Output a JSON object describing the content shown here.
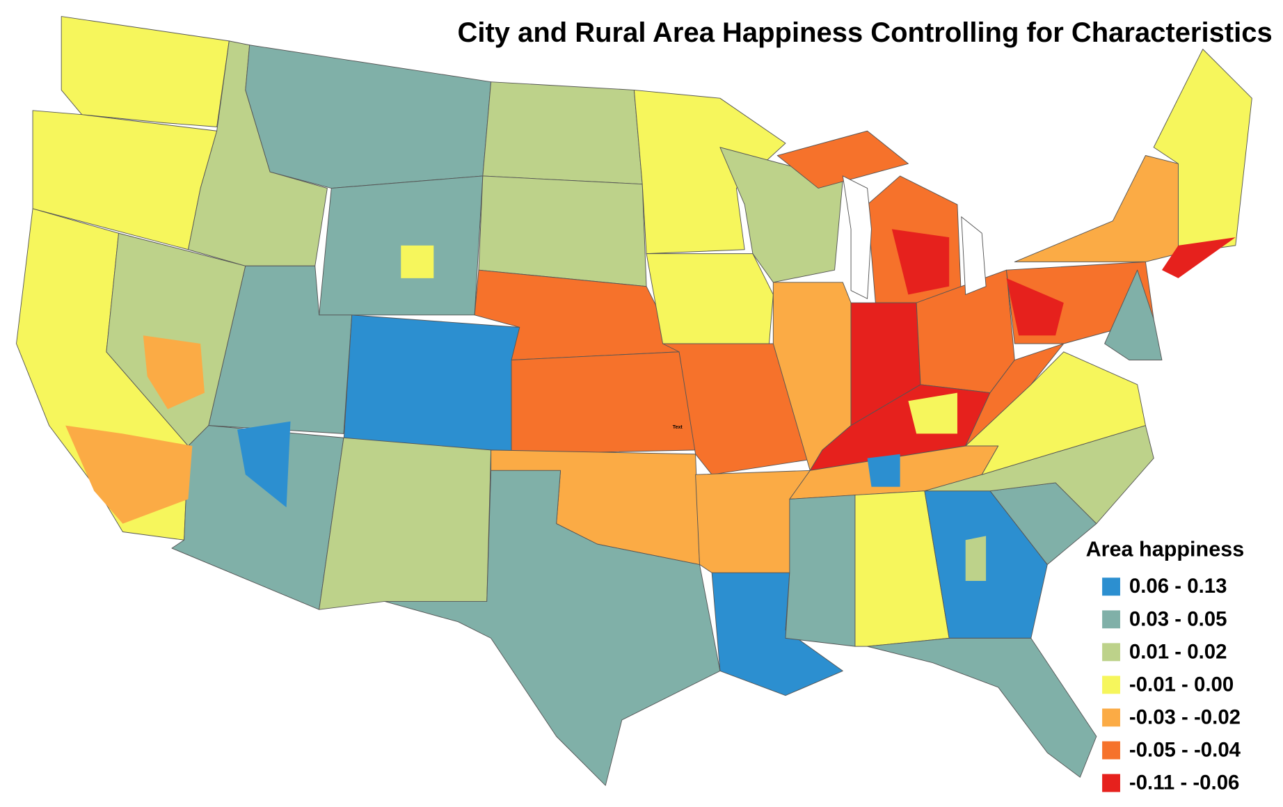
{
  "map": {
    "title": "City and Rural Area Happiness Controlling for Characteristics",
    "annotation": "Text",
    "legend": {
      "title": "Area happiness",
      "items": [
        {
          "label": "0.06 - 0.13",
          "color": "#2c8fd0"
        },
        {
          "label": "0.03 - 0.05",
          "color": "#80b0a8"
        },
        {
          "label": "0.01 - 0.02",
          "color": "#bdd28a"
        },
        {
          "label": "-0.01 - 0.00",
          "color": "#f6f65c"
        },
        {
          "label": "-0.03 - -0.02",
          "color": "#fbab45"
        },
        {
          "label": "-0.05 - -0.04",
          "color": "#f6722b"
        },
        {
          "label": "-0.11 - -0.06",
          "color": "#e6211d"
        }
      ]
    }
  }
}
